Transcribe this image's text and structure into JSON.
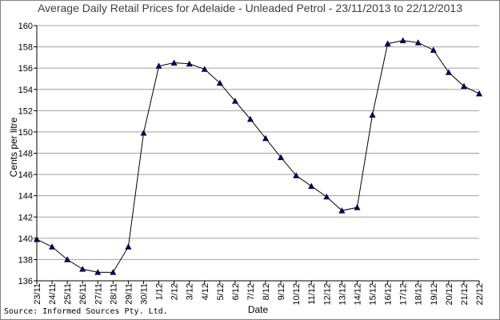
{
  "chart_data": {
    "type": "line",
    "title": "Average Daily Retail Prices for Adelaide - Unleaded Petrol - 23/11/2013 to 22/12/2013",
    "xlabel": "Date",
    "ylabel": "Cents per litre",
    "ylim": [
      136,
      160
    ],
    "ytick_step": 2,
    "grid": true,
    "legend": "none",
    "categories": [
      "23/11",
      "24/11",
      "25/11",
      "26/11",
      "27/11",
      "28/11",
      "29/11",
      "30/11",
      "1/12",
      "2/12",
      "3/12",
      "4/12",
      "5/12",
      "6/12",
      "7/12",
      "8/12",
      "9/12",
      "10/12",
      "11/12",
      "12/12",
      "13/12",
      "14/12",
      "15/12",
      "16/12",
      "17/12",
      "18/12",
      "19/12",
      "20/12",
      "21/12",
      "22/12"
    ],
    "series": [
      {
        "values": [
          139.9,
          139.2,
          138.0,
          137.1,
          136.8,
          136.8,
          139.2,
          149.9,
          156.2,
          156.5,
          156.4,
          155.9,
          154.6,
          152.9,
          151.2,
          149.4,
          147.6,
          145.9,
          144.9,
          143.9,
          142.6,
          142.9,
          151.6,
          158.3,
          158.6,
          158.4,
          157.7,
          155.6,
          154.3,
          153.6
        ],
        "color": "#000000",
        "marker_color": "#000080"
      }
    ]
  },
  "source_text": "Source: Informed Sources Pty. Ltd."
}
